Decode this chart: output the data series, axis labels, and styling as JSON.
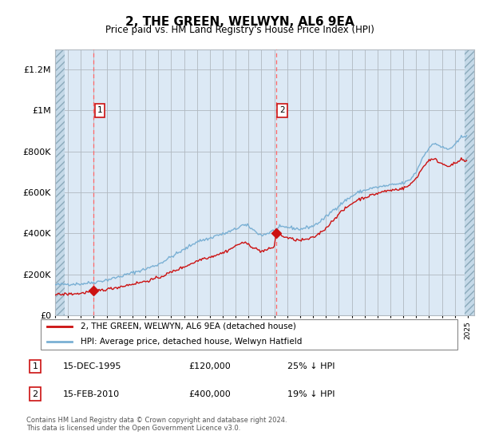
{
  "title": "2, THE GREEN, WELWYN, AL6 9EA",
  "subtitle": "Price paid vs. HM Land Registry's House Price Index (HPI)",
  "ylim": [
    0,
    1300000
  ],
  "yticks": [
    0,
    200000,
    400000,
    600000,
    800000,
    1000000,
    1200000
  ],
  "ytick_labels": [
    "£0",
    "£200K",
    "£400K",
    "£600K",
    "£800K",
    "£1M",
    "£1.2M"
  ],
  "bg_color": "#dce9f5",
  "hatch_color": "#c5d9e8",
  "grid_color": "#b0b8c0",
  "sale1_x": 1995.958,
  "sale1_price": 120000,
  "sale2_x": 2010.125,
  "sale2_price": 400000,
  "legend_line1": "2, THE GREEN, WELWYN, AL6 9EA (detached house)",
  "legend_line2": "HPI: Average price, detached house, Welwyn Hatfield",
  "table_rows": [
    [
      "1",
      "15-DEC-1995",
      "£120,000",
      "25% ↓ HPI"
    ],
    [
      "2",
      "15-FEB-2010",
      "£400,000",
      "19% ↓ HPI"
    ]
  ],
  "footnote": "Contains HM Land Registry data © Crown copyright and database right 2024.\nThis data is licensed under the Open Government Licence v3.0.",
  "xmin": 1993.0,
  "xmax": 2025.5,
  "hatch_left_end": 1993.75,
  "hatch_right_start": 2024.75
}
